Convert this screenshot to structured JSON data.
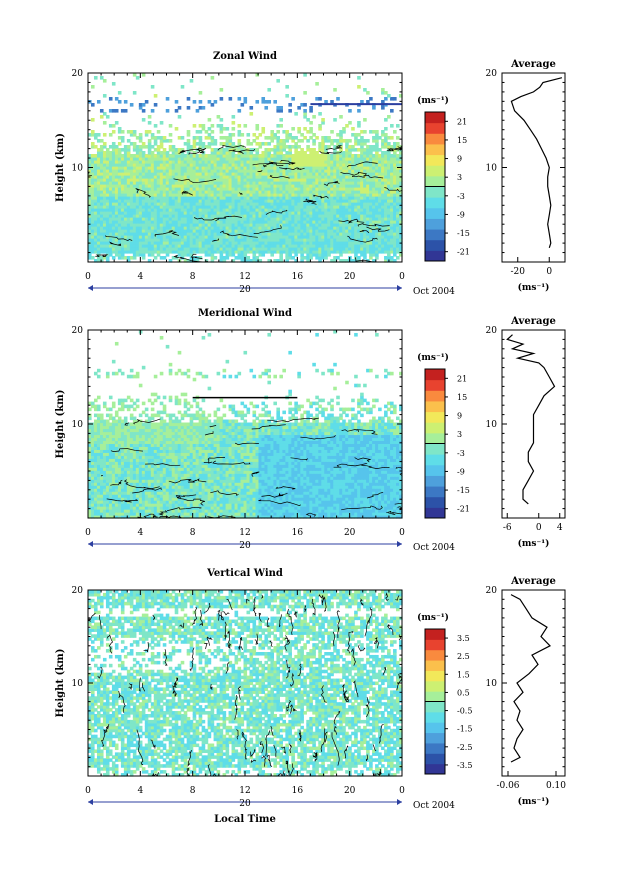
{
  "figure": {
    "xlabel": "Local Time",
    "date_label": "Oct 2004",
    "day_label": "20",
    "ylabel": "Height (km)",
    "units_label": "(ms⁻¹)",
    "avg_title": "Average",
    "colormap": [
      "#313695",
      "#2c52a8",
      "#3c78c4",
      "#4ea0dc",
      "#56c4ec",
      "#5fdde8",
      "#7fe6c8",
      "#a6ef9a",
      "#cdf072",
      "#f2e85a",
      "#fbc04c",
      "#f98a3e",
      "#e8432f",
      "#c4211f"
    ]
  },
  "chart_data": [
    {
      "type": "heatmap",
      "title": "Zonal Wind",
      "x_ticks": [
        "0",
        "4",
        "8",
        "12",
        "16",
        "20",
        "0"
      ],
      "y_ticks": [
        "10",
        "20"
      ],
      "ylim": [
        0,
        20
      ],
      "xlim": [
        0,
        24
      ],
      "colorbar_ticks": [
        "21",
        "15",
        "9",
        "3",
        "-3",
        "-9",
        "-15",
        "-21"
      ],
      "colorbar_range": [
        -24,
        24
      ],
      "average": {
        "title": "Average",
        "x_ticks": [
          "-20",
          "0"
        ],
        "xlim": [
          -30,
          10
        ],
        "xlabel": "(ms⁻¹)",
        "height": [
          1.5,
          2,
          3,
          4,
          5,
          6,
          7,
          8,
          9,
          10,
          11,
          12,
          13,
          14,
          15,
          16,
          17,
          17.5,
          18,
          18.5,
          19,
          19.5
        ],
        "value": [
          0,
          1,
          0,
          -1,
          0,
          1,
          0,
          -1,
          -1,
          0,
          -2,
          -5,
          -8,
          -12,
          -16,
          -22,
          -24,
          -18,
          -10,
          -6,
          -4,
          8
        ]
      }
    },
    {
      "type": "heatmap",
      "title": "Meridional Wind",
      "x_ticks": [
        "0",
        "4",
        "8",
        "12",
        "16",
        "20",
        "0"
      ],
      "y_ticks": [
        "10",
        "20"
      ],
      "ylim": [
        0,
        20
      ],
      "xlim": [
        0,
        24
      ],
      "colorbar_ticks": [
        "21",
        "15",
        "9",
        "3",
        "-3",
        "-9",
        "-15",
        "-21"
      ],
      "colorbar_range": [
        -24,
        24
      ],
      "average": {
        "title": "Average",
        "x_ticks": [
          "-6",
          "0",
          "4"
        ],
        "xlim": [
          -7,
          5
        ],
        "xlabel": "(ms⁻¹)",
        "height": [
          1.5,
          2,
          3,
          4,
          5,
          6,
          7,
          8,
          9,
          10,
          11,
          12,
          13,
          14,
          15,
          16,
          16.5,
          17,
          17.5,
          18,
          18.5,
          19,
          19.5
        ],
        "value": [
          -2,
          -3,
          -3,
          -2,
          -1,
          -2,
          -2,
          -1,
          -1,
          -1,
          -1,
          0,
          1,
          3,
          2,
          1,
          0,
          -4,
          -1,
          -5,
          -3,
          -6,
          -5
        ]
      }
    },
    {
      "type": "heatmap",
      "title": "Vertical Wind",
      "x_ticks": [
        "0",
        "4",
        "8",
        "12",
        "16",
        "20",
        "0"
      ],
      "y_ticks": [
        "10",
        "20"
      ],
      "ylim": [
        0,
        20
      ],
      "xlim": [
        0,
        24
      ],
      "colorbar_ticks": [
        "3.5",
        "2.5",
        "1.5",
        "0.5",
        "-0.5",
        "-1.5",
        "-2.5",
        "-3.5"
      ],
      "colorbar_range": [
        -4,
        4
      ],
      "average": {
        "title": "Average",
        "x_ticks": [
          "-0.06",
          "0.10"
        ],
        "xlim": [
          -0.08,
          0.13
        ],
        "xlabel": "(ms⁻¹)",
        "height": [
          1.5,
          2,
          3,
          4,
          5,
          6,
          7,
          8,
          9,
          10,
          11,
          12,
          13,
          14,
          15,
          16,
          17,
          18,
          19,
          19.5
        ],
        "value": [
          -0.05,
          -0.02,
          -0.04,
          -0.03,
          -0.01,
          -0.03,
          -0.02,
          -0.04,
          -0.01,
          -0.03,
          0.01,
          0.04,
          0.02,
          0.08,
          0.05,
          0.07,
          0.02,
          0.0,
          -0.02,
          -0.05
        ]
      }
    }
  ]
}
